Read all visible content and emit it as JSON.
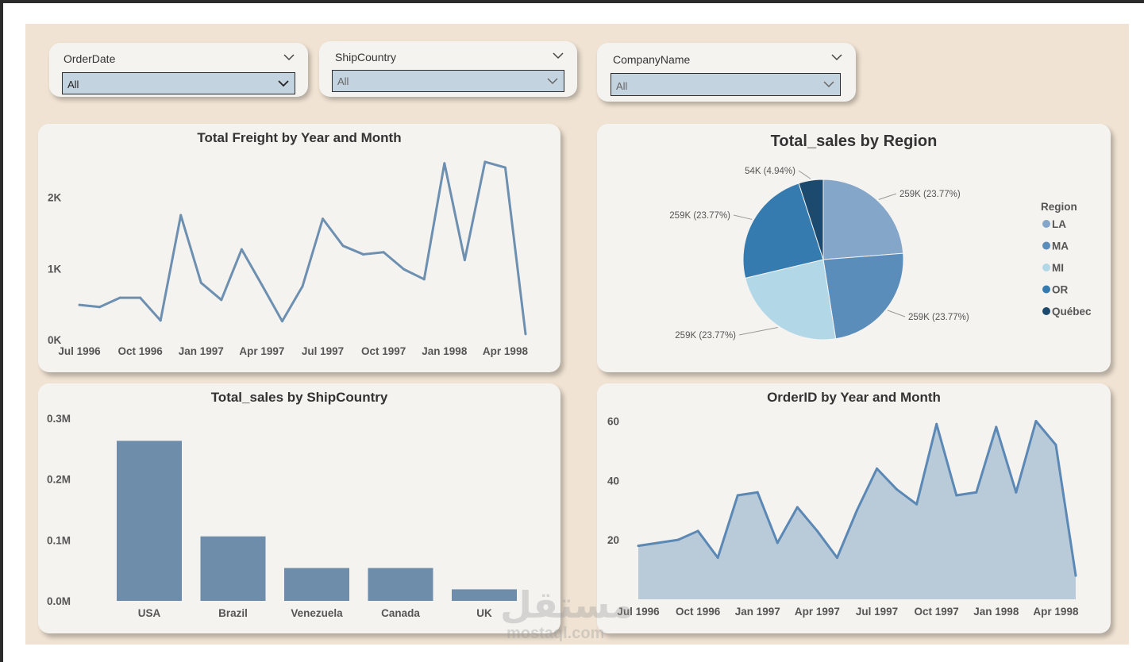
{
  "slicers": [
    {
      "title": "OrderDate",
      "value": "All"
    },
    {
      "title": "ShipCountry",
      "value": "All"
    },
    {
      "title": "CompanyName",
      "value": "All"
    }
  ],
  "colors": {
    "canvas": "#f0e3d3",
    "panel": "#f5f3f0",
    "line": "#6d90b0",
    "bar": "#6d8dab",
    "area_fill": "#b9cbd9",
    "area_line": "#5b88b4"
  },
  "watermark": {
    "brand": "مستقل",
    "url": "mostaql.com"
  },
  "chart_data": [
    {
      "id": "freight",
      "type": "line",
      "title": "Total Freight by Year and Month",
      "x": [
        "Jul 1996",
        "Aug 1996",
        "Sep 1996",
        "Oct 1996",
        "Nov 1996",
        "Dec 1996",
        "Jan 1997",
        "Feb 1997",
        "Mar 1997",
        "Apr 1997",
        "May 1997",
        "Jun 1997",
        "Jul 1997",
        "Aug 1997",
        "Sep 1997",
        "Oct 1997",
        "Nov 1997",
        "Dec 1997",
        "Jan 1998",
        "Feb 1998",
        "Mar 1998",
        "Apr 1998",
        "May 1998"
      ],
      "values": [
        490,
        460,
        590,
        590,
        270,
        1750,
        800,
        560,
        1270,
        770,
        260,
        750,
        1700,
        1320,
        1200,
        1230,
        990,
        850,
        2480,
        1120,
        2500,
        2420,
        80
      ],
      "xticks": [
        "Jul 1996",
        "Oct 1996",
        "Jan 1997",
        "Apr 1997",
        "Jul 1997",
        "Oct 1997",
        "Jan 1998",
        "Apr 1998"
      ],
      "yticks": [
        {
          "value": 0,
          "label": "0K"
        },
        {
          "value": 1000,
          "label": "1K"
        },
        {
          "value": 2000,
          "label": "2K"
        }
      ],
      "ylim": [
        0,
        2700
      ]
    },
    {
      "id": "region",
      "type": "pie",
      "title": "Total_sales by Region",
      "slices": [
        {
          "name": "LA",
          "value": 259,
          "label": "259K (23.77%)",
          "color": "#83a6c9"
        },
        {
          "name": "MA",
          "value": 259,
          "label": "259K (23.77%)",
          "color": "#5b8dbb"
        },
        {
          "name": "MI",
          "value": 259,
          "label": "259K (23.77%)",
          "color": "#b2d8e8"
        },
        {
          "name": "OR",
          "value": 259,
          "label": "259K (23.77%)",
          "color": "#357bb0"
        },
        {
          "name": "Québec",
          "value": 54,
          "label": "54K (4.94%)",
          "color": "#1c4a6e"
        }
      ],
      "legend_title": "Region"
    },
    {
      "id": "shipcountry",
      "type": "bar",
      "title": "Total_sales by ShipCountry",
      "categories": [
        "USA",
        "Brazil",
        "Venezuela",
        "Canada",
        "UK"
      ],
      "values": [
        0.263,
        0.106,
        0.054,
        0.054,
        0.019
      ],
      "yticks": [
        {
          "value": 0,
          "label": "0.0M"
        },
        {
          "value": 0.1,
          "label": "0.1M"
        },
        {
          "value": 0.2,
          "label": "0.2M"
        },
        {
          "value": 0.3,
          "label": "0.3M"
        }
      ],
      "ylim": [
        0,
        0.3
      ]
    },
    {
      "id": "orders",
      "type": "area",
      "title": "OrderID by Year and Month",
      "x": [
        "Jul 1996",
        "Aug 1996",
        "Sep 1996",
        "Oct 1996",
        "Nov 1996",
        "Dec 1996",
        "Jan 1997",
        "Feb 1997",
        "Mar 1997",
        "Apr 1997",
        "May 1997",
        "Jun 1997",
        "Jul 1997",
        "Aug 1997",
        "Sep 1997",
        "Oct 1997",
        "Nov 1997",
        "Dec 1997",
        "Jan 1998",
        "Feb 1998",
        "Mar 1998",
        "Apr 1998",
        "May 1998"
      ],
      "values": [
        18,
        19,
        20,
        23,
        14,
        35,
        36,
        19,
        31,
        23,
        14,
        30,
        44,
        37,
        32,
        59,
        35,
        36,
        58,
        36,
        60,
        52,
        8
      ],
      "xticks": [
        "Jul 1996",
        "Oct 1996",
        "Jan 1997",
        "Apr 1997",
        "Jul 1997",
        "Oct 1997",
        "Jan 1998",
        "Apr 1998"
      ],
      "yticks": [
        {
          "value": 20,
          "label": "20"
        },
        {
          "value": 40,
          "label": "40"
        },
        {
          "value": 60,
          "label": "60"
        }
      ],
      "ylim": [
        0,
        62
      ]
    }
  ]
}
